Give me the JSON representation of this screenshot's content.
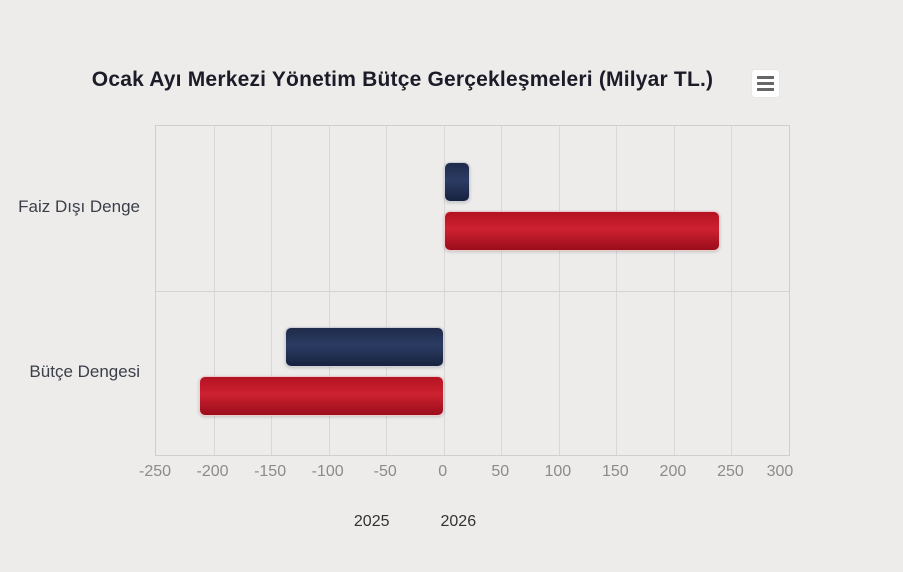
{
  "header": {
    "title": "Ocak Ayı Merkezi Yönetim Bütçe Gerçekleşmeleri (Milyar TL.)"
  },
  "menu": {
    "icon": "hamburger-icon"
  },
  "chart_data": {
    "type": "bar",
    "orientation": "horizontal",
    "title": "Ocak Ayı Merkezi Yönetim Bütçe Gerçekleşmeleri (Milyar TL.)",
    "categories": [
      "Faiz Dışı Denge",
      "Bütçe Dengesi"
    ],
    "series": [
      {
        "name": "2025",
        "color": "#1f2b4d",
        "values": [
          23,
          -138
        ]
      },
      {
        "name": "2026",
        "color": "#c0121f",
        "values": [
          240,
          -213
        ]
      }
    ],
    "xlim": [
      -250,
      300
    ],
    "xticks": [
      -250,
      -200,
      -150,
      -100,
      -50,
      0,
      50,
      100,
      150,
      200,
      250,
      300
    ],
    "grid": true,
    "legend_position": "bottom",
    "background_color": "#edeceb",
    "gridline_color": "#d8d8d8"
  }
}
